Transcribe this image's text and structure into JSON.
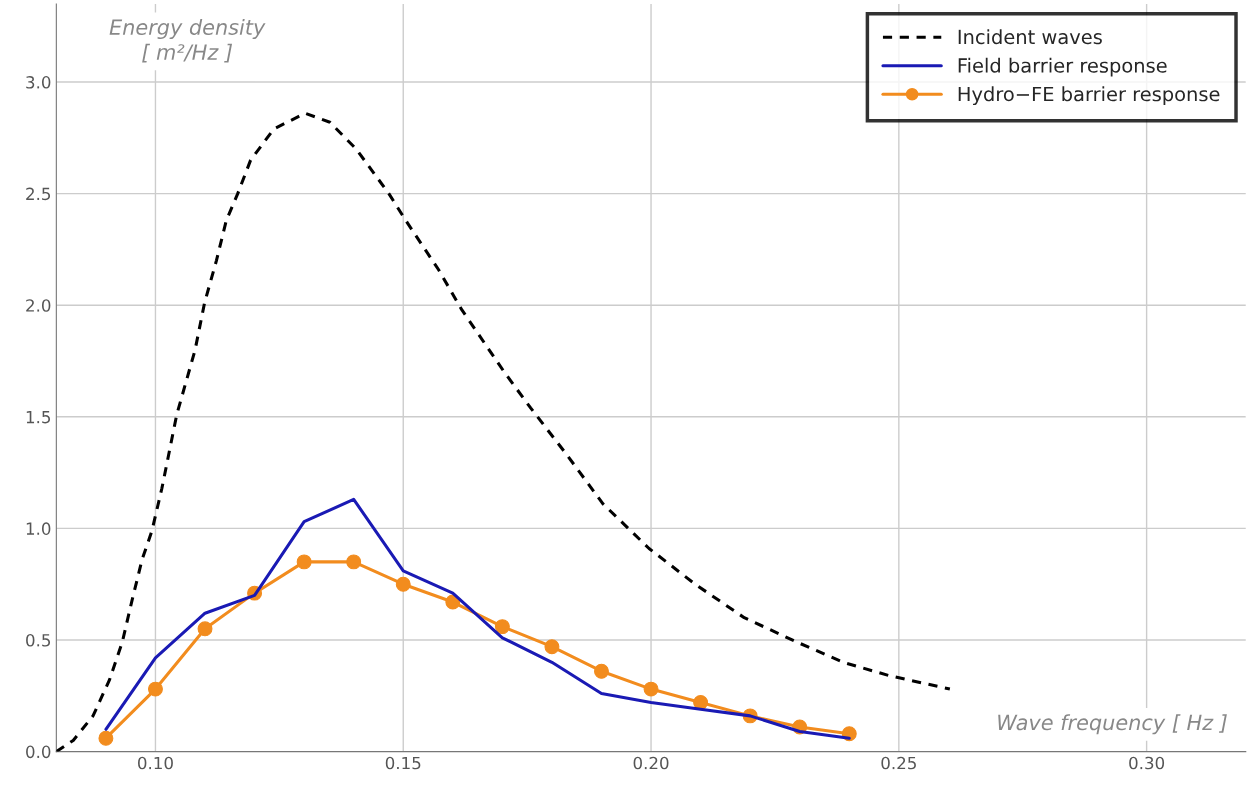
{
  "chart_data": {
    "type": "line",
    "xlabel": "Wave frequency [ Hz ]",
    "ylabel": "Energy density\n[ m²/Hz ]",
    "xlim": [
      0.08,
      0.32
    ],
    "ylim": [
      0,
      3.35
    ],
    "xticks": [
      {
        "value": 0.1,
        "label": "0.10"
      },
      {
        "value": 0.15,
        "label": "0.15"
      },
      {
        "value": 0.2,
        "label": "0.20"
      },
      {
        "value": 0.25,
        "label": "0.25"
      },
      {
        "value": 0.3,
        "label": "0.30"
      }
    ],
    "yticks": [
      {
        "value": 0,
        "label": "0.0"
      },
      {
        "value": 0.5,
        "label": "0.5"
      },
      {
        "value": 1,
        "label": "1.0"
      },
      {
        "value": 1.5,
        "label": "1.5"
      },
      {
        "value": 2,
        "label": "2.0"
      },
      {
        "value": 2.5,
        "label": "2.5"
      },
      {
        "value": 3,
        "label": "3.0"
      }
    ],
    "grid": true,
    "legend": "top right",
    "series": [
      {
        "name": "Incident waves",
        "color": "#000000",
        "line_style": "dashed",
        "marker": "none",
        "x": [
          0.08,
          0.0834,
          0.0874,
          0.0907,
          0.0933,
          0.0953,
          0.0973,
          0.0993,
          0.1013,
          0.1043,
          0.108,
          0.1099,
          0.1123,
          0.1143,
          0.1166,
          0.1192,
          0.1239,
          0.1302,
          0.1352,
          0.1405,
          0.1471,
          0.1505,
          0.1571,
          0.1618,
          0.1704,
          0.1757,
          0.183,
          0.1903,
          0.1996,
          0.2089,
          0.2188,
          0.2295,
          0.2388,
          0.2481,
          0.2603
        ],
        "values": [
          0.0,
          0.05,
          0.16,
          0.32,
          0.49,
          0.68,
          0.86,
          0.99,
          1.18,
          1.51,
          1.8,
          2.01,
          2.2,
          2.38,
          2.5,
          2.65,
          2.79,
          2.86,
          2.82,
          2.7,
          2.5,
          2.38,
          2.16,
          1.98,
          1.7,
          1.54,
          1.33,
          1.11,
          0.91,
          0.75,
          0.6,
          0.49,
          0.4,
          0.34,
          0.28
        ]
      },
      {
        "name": "Field barrier response",
        "color": "#1a1ab4",
        "line_style": "solid",
        "marker": "none",
        "x": [
          0.09,
          0.1,
          0.11,
          0.12,
          0.13,
          0.14,
          0.15,
          0.16,
          0.17,
          0.18,
          0.19,
          0.2,
          0.21,
          0.22,
          0.23,
          0.24
        ],
        "values": [
          0.1,
          0.42,
          0.62,
          0.7,
          1.03,
          1.13,
          0.81,
          0.71,
          0.51,
          0.4,
          0.26,
          0.22,
          0.19,
          0.16,
          0.09,
          0.06
        ]
      },
      {
        "name": "Hydro−FE barrier response",
        "color": "#f28c1e",
        "line_style": "solid",
        "marker": "circle",
        "x": [
          0.09,
          0.1,
          0.11,
          0.12,
          0.13,
          0.14,
          0.15,
          0.16,
          0.17,
          0.18,
          0.19,
          0.2,
          0.21,
          0.22,
          0.23,
          0.24
        ],
        "values": [
          0.06,
          0.28,
          0.55,
          0.71,
          0.85,
          0.85,
          0.75,
          0.67,
          0.56,
          0.47,
          0.36,
          0.28,
          0.22,
          0.16,
          0.11,
          0.08
        ]
      }
    ]
  }
}
